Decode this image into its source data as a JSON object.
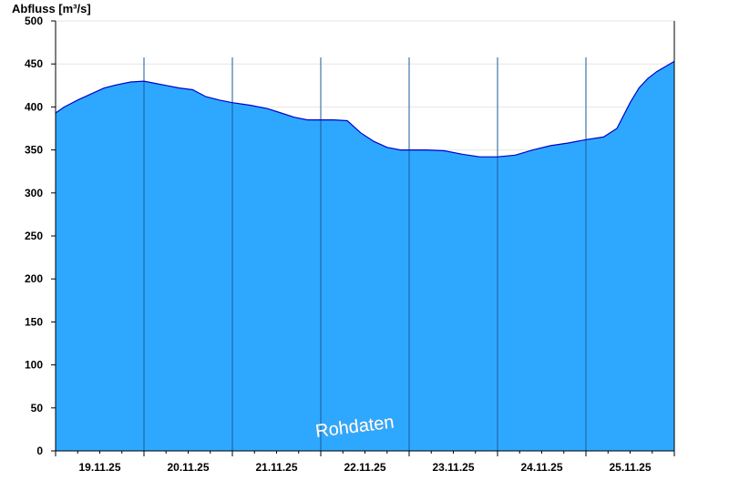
{
  "chart_data": {
    "type": "area",
    "title": "",
    "ylabel": "Abfluss [m³/s]",
    "xlabel": "",
    "ylim": [
      0,
      500
    ],
    "yticks": [
      0,
      50,
      100,
      150,
      200,
      250,
      300,
      350,
      400,
      450,
      500
    ],
    "xlim": [
      0,
      7
    ],
    "x_tick_labels": [
      "19.11.25",
      "20.11.25",
      "21.11.25",
      "22.11.25",
      "23.11.25",
      "24.11.25",
      "25.11.25"
    ],
    "grid": true,
    "fill_color": "#2ea8ff",
    "line_color": "#0000cc",
    "watermark": "Rohdaten",
    "series": [
      {
        "x": [
          0,
          0.1,
          0.25,
          0.4,
          0.55,
          0.7,
          0.85,
          1.0,
          1.1,
          1.25,
          1.4,
          1.55,
          1.7,
          1.85,
          2.0,
          2.2,
          2.4,
          2.55,
          2.7,
          2.85,
          3.0,
          3.15,
          3.3,
          3.45,
          3.6,
          3.75,
          3.9,
          4.0,
          4.2,
          4.4,
          4.6,
          4.8,
          4.9,
          5.0,
          5.2,
          5.4,
          5.6,
          5.8,
          6.0,
          6.2,
          6.35,
          6.5,
          6.6,
          6.7,
          6.8,
          6.9,
          7.0
        ],
        "values": [
          393,
          400,
          408,
          415,
          422,
          426,
          429,
          430,
          428,
          425,
          422,
          420,
          412,
          408,
          405,
          402,
          398,
          393,
          388,
          385,
          385,
          385,
          384,
          370,
          360,
          353,
          350,
          350,
          350,
          349,
          345,
          342,
          342,
          342,
          344,
          350,
          355,
          358,
          362,
          365,
          375,
          405,
          422,
          433,
          441,
          447,
          453
        ]
      }
    ]
  }
}
